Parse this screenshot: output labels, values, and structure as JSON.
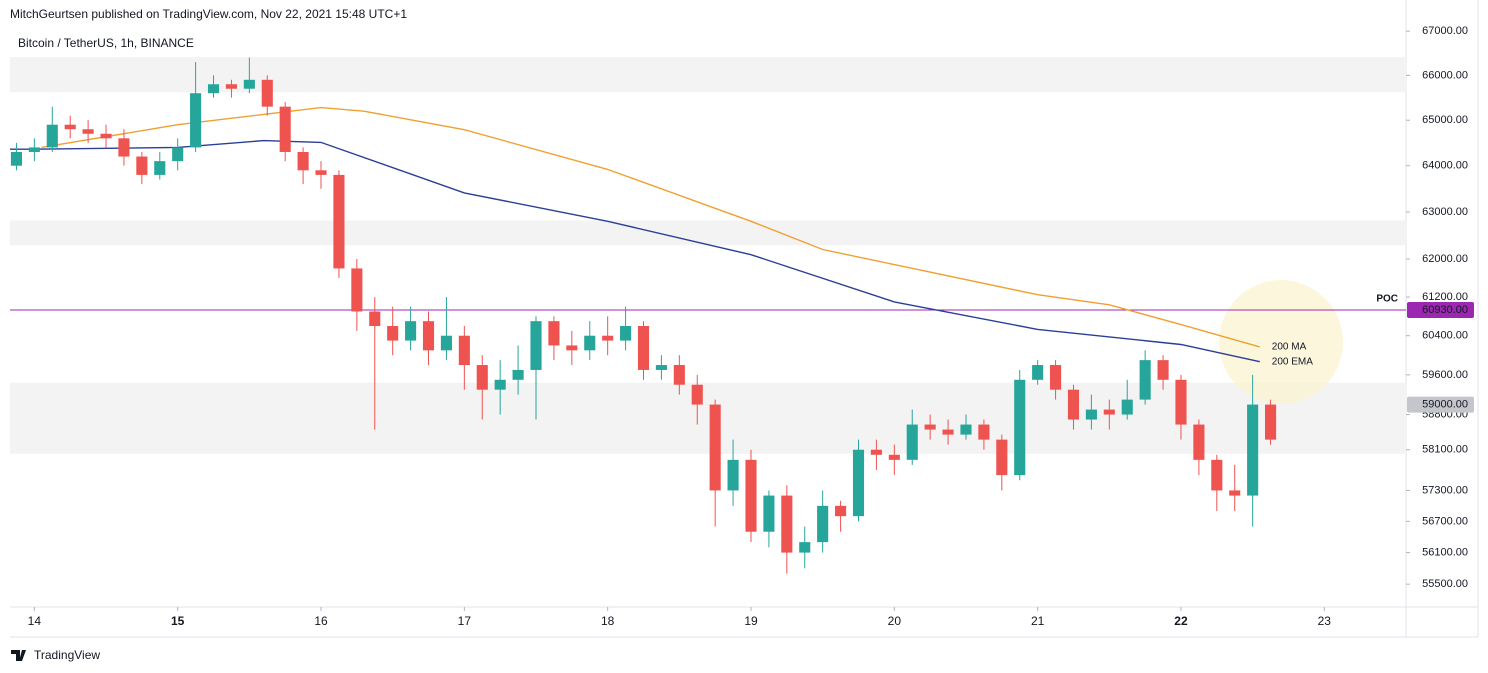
{
  "header": "MitchGeurtsen published on TradingView.com, Nov 22, 2021 15:48 UTC+1",
  "footer": {
    "brand": "TradingView"
  },
  "chart_data": {
    "type": "candlestick",
    "title": "Bitcoin / TetherUS, 1h, BINANCE",
    "up_color": "#26a69a",
    "down_color": "#ef5350",
    "x": [
      13.875,
      14.0,
      14.125,
      14.25,
      14.375,
      14.5,
      14.625,
      14.75,
      14.875,
      15.0,
      15.125,
      15.25,
      15.375,
      15.5,
      15.625,
      15.75,
      15.875,
      16.0,
      16.125,
      16.25,
      16.375,
      16.5,
      16.625,
      16.75,
      16.875,
      17.0,
      17.125,
      17.25,
      17.375,
      17.5,
      17.625,
      17.75,
      17.875,
      18.0,
      18.125,
      18.25,
      18.375,
      18.5,
      18.625,
      18.75,
      18.875,
      19.0,
      19.125,
      19.25,
      19.375,
      19.5,
      19.625,
      19.75,
      19.875,
      20.0,
      20.125,
      20.25,
      20.375,
      20.5,
      20.625,
      20.75,
      20.875,
      21.0,
      21.125,
      21.25,
      21.375,
      21.5,
      21.625,
      21.75,
      21.875,
      22.0,
      22.125,
      22.25,
      22.375,
      22.5,
      22.625
    ],
    "open": [
      64000,
      64300,
      64400,
      64900,
      64800,
      64700,
      64600,
      64200,
      63800,
      64100,
      64400,
      65600,
      65800,
      65700,
      65900,
      65300,
      64300,
      63900,
      63800,
      61800,
      60900,
      60600,
      60300,
      60700,
      60100,
      60400,
      59800,
      59300,
      59500,
      59700,
      60700,
      60200,
      60100,
      60400,
      60300,
      60600,
      59700,
      59800,
      59400,
      59000,
      57300,
      57900,
      56500,
      57200,
      56100,
      56300,
      57000,
      56800,
      58100,
      58000,
      57900,
      58600,
      58500,
      58400,
      58600,
      58300,
      57600,
      59500,
      59800,
      59300,
      58700,
      58900,
      58800,
      59100,
      59900,
      59500,
      58600,
      57900,
      57300,
      57200,
      59000
    ],
    "high": [
      64500,
      64600,
      65300,
      65100,
      65000,
      64900,
      64800,
      64300,
      64300,
      64600,
      66300,
      66000,
      65900,
      66400,
      66000,
      65400,
      64400,
      64100,
      63900,
      62000,
      61200,
      61000,
      61000,
      60900,
      61200,
      60600,
      60000,
      59900,
      60200,
      60800,
      60800,
      60500,
      60700,
      60800,
      61000,
      60700,
      60000,
      60000,
      59600,
      59100,
      58300,
      58100,
      57300,
      57400,
      56600,
      57300,
      57100,
      58300,
      58300,
      58200,
      58900,
      58800,
      58700,
      58800,
      58700,
      58400,
      59700,
      59900,
      59900,
      59400,
      59200,
      59100,
      59500,
      60100,
      60000,
      59600,
      58700,
      58000,
      57800,
      59600,
      59100
    ],
    "low": [
      63900,
      64100,
      64300,
      64600,
      64500,
      64400,
      64000,
      63600,
      63700,
      63900,
      64300,
      65500,
      65500,
      65600,
      65100,
      64100,
      63600,
      63500,
      61600,
      60500,
      58500,
      60000,
      60100,
      59800,
      59900,
      59300,
      58700,
      58800,
      59200,
      58700,
      59900,
      59800,
      59900,
      60000,
      60100,
      59500,
      59500,
      59200,
      58600,
      56600,
      57000,
      56300,
      56200,
      55700,
      55800,
      56100,
      56500,
      56700,
      57700,
      57600,
      57800,
      58300,
      58200,
      58300,
      58100,
      57300,
      57500,
      59400,
      59100,
      58500,
      58500,
      58500,
      58700,
      59000,
      59300,
      58300,
      57600,
      56900,
      56900,
      56600,
      58200
    ],
    "close": [
      64300,
      64400,
      64900,
      64800,
      64700,
      64600,
      64200,
      63800,
      64100,
      64400,
      65600,
      65800,
      65700,
      65900,
      65300,
      64300,
      63900,
      63800,
      61800,
      60900,
      60600,
      60300,
      60700,
      60100,
      60400,
      59800,
      59300,
      59500,
      59700,
      60700,
      60200,
      60100,
      60400,
      60300,
      60600,
      59700,
      59800,
      59400,
      59000,
      57300,
      57900,
      56500,
      57200,
      56100,
      56300,
      57000,
      56800,
      58100,
      58000,
      57900,
      58600,
      58500,
      58400,
      58600,
      58300,
      57600,
      59500,
      59800,
      59300,
      58700,
      58900,
      58800,
      59100,
      59900,
      59500,
      58600,
      57900,
      57300,
      57200,
      59000,
      58300
    ],
    "lines": [
      {
        "name": "200 MA",
        "color": "#f0a030",
        "x": [
          14.05,
          15.0,
          16.0,
          16.3,
          17.0,
          18.0,
          19.0,
          19.5,
          20.0,
          21.0,
          21.5,
          22.0,
          22.55
        ],
        "values": [
          64400,
          64900,
          65280,
          65200,
          64790,
          63920,
          62800,
          62200,
          61880,
          61250,
          61040,
          60630,
          60170
        ]
      },
      {
        "name": "200 EMA",
        "color": "#2a3f95",
        "x": [
          13.83,
          14.0,
          15.0,
          15.6,
          16.0,
          17.0,
          18.0,
          19.0,
          20.0,
          21.0,
          22.0,
          22.55
        ],
        "values": [
          64360,
          64360,
          64400,
          64550,
          64510,
          63410,
          62800,
          62090,
          61100,
          60530,
          60220,
          59868
        ]
      }
    ],
    "poc": {
      "label": "POC",
      "value": 60930,
      "value_label": "60930.00",
      "color": "#9c27b0"
    },
    "price_marker": {
      "value": 59000,
      "label": "59000.00"
    },
    "zones": [
      {
        "low": 65620,
        "high": 66410
      },
      {
        "low": 62290,
        "high": 62820
      },
      {
        "low": 58020,
        "high": 59440
      }
    ],
    "xlim": [
      13.83,
      23.57
    ],
    "xticks": [
      14,
      15,
      16,
      17,
      18,
      19,
      20,
      21,
      22,
      23
    ],
    "bold_xticks": [
      15,
      22
    ],
    "ylim": [
      55070,
      67210
    ],
    "log_scale": true,
    "yticks": [
      {
        "value": 67000,
        "label": "67000.00"
      },
      {
        "value": 66000,
        "label": "66000.00"
      },
      {
        "value": 65000,
        "label": "65000.00"
      },
      {
        "value": 64000,
        "label": "64000.00"
      },
      {
        "value": 63000,
        "label": "63000.00"
      },
      {
        "value": 62000,
        "label": "62000.00"
      },
      {
        "value": 61200,
        "label": "61200.00"
      },
      {
        "value": 60400,
        "label": "60400.00"
      },
      {
        "value": 59600,
        "label": "59600.00"
      },
      {
        "value": 58800,
        "label": "58800.00"
      },
      {
        "value": 58100,
        "label": "58100.00"
      },
      {
        "value": 57300,
        "label": "57300.00"
      },
      {
        "value": 56700,
        "label": "56700.00"
      },
      {
        "value": 56100,
        "label": "56100.00"
      },
      {
        "value": 55500,
        "label": "55500.00"
      }
    ]
  }
}
